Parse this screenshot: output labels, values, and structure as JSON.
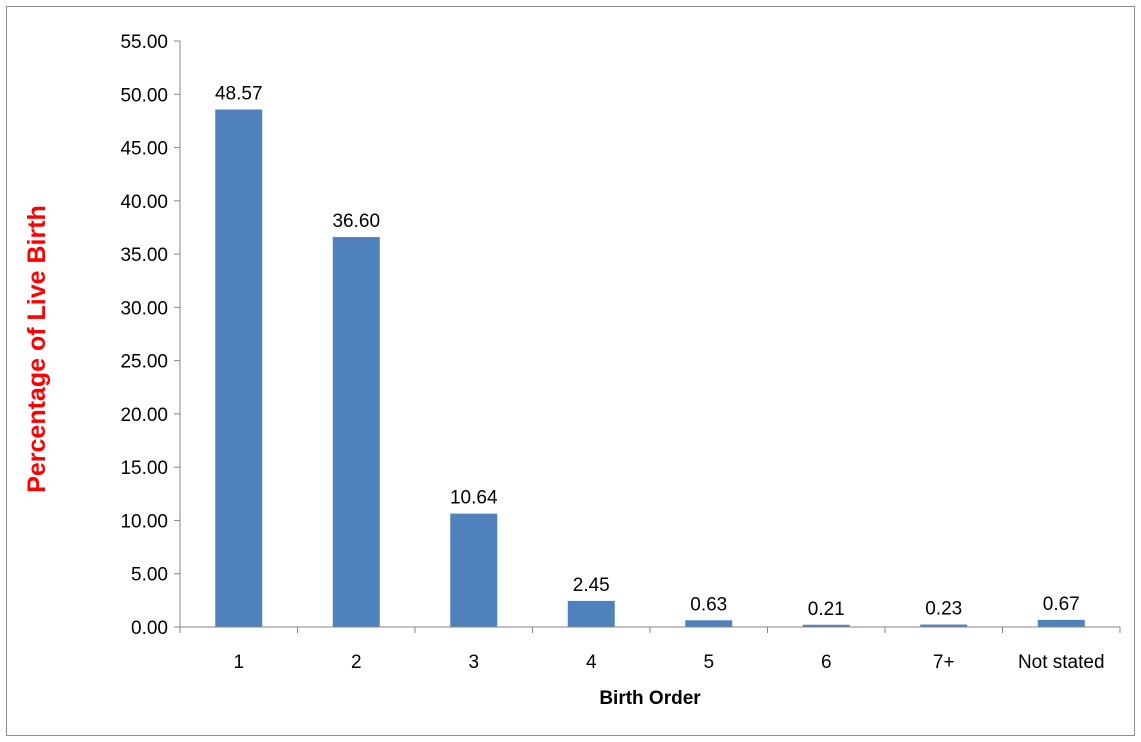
{
  "chart_data": {
    "type": "bar",
    "categories": [
      "1",
      "2",
      "3",
      "4",
      "5",
      "6",
      "7+",
      "Not stated"
    ],
    "values": [
      48.57,
      36.6,
      10.64,
      2.45,
      0.63,
      0.21,
      0.23,
      0.67
    ],
    "data_labels": [
      "48.57",
      "36.60",
      "10.64",
      "2.45",
      "0.63",
      "0.21",
      "0.23",
      "0.67"
    ],
    "xlabel": "Birth Order",
    "ylabel": "Percentage of Live Birth",
    "ylim": [
      0,
      55
    ],
    "y_ticks": [
      "0.00",
      "5.00",
      "10.00",
      "15.00",
      "20.00",
      "25.00",
      "30.00",
      "35.00",
      "40.00",
      "45.00",
      "50.00",
      "55.00"
    ],
    "grid": false,
    "legend": "none",
    "colors": {
      "bar": "#4f81bd",
      "ylabel": "#ff0000",
      "axis": "#868686"
    }
  }
}
